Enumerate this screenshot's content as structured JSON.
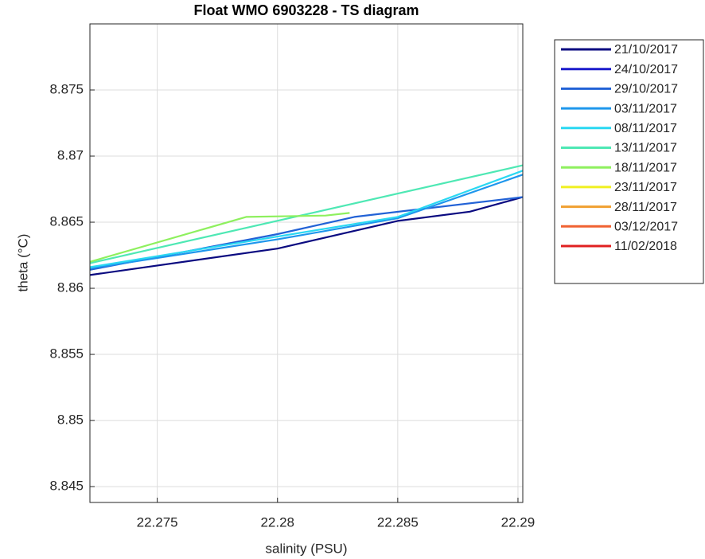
{
  "chart_data": {
    "type": "line",
    "title": "Float WMO 6903228 - TS diagram",
    "xlabel": "salinity (PSU)",
    "ylabel": "theta (°C)",
    "xlim": [
      22.2722,
      22.2902
    ],
    "ylim": [
      8.8438,
      8.88
    ],
    "xticks": [
      22.275,
      22.28,
      22.285,
      22.29
    ],
    "yticks": [
      8.845,
      8.85,
      8.855,
      8.86,
      8.865,
      8.87,
      8.875
    ],
    "grid": true,
    "legend": "outside-upper-right",
    "series": [
      {
        "name": "21/10/2017",
        "color": "#0a0a80",
        "x": [
          22.2722,
          22.28,
          22.285,
          22.288,
          22.2902
        ],
        "values": [
          8.861,
          8.863,
          8.8651,
          8.8658,
          8.8669
        ]
      },
      {
        "name": "24/10/2017",
        "color": "#1c1ccc",
        "x": [],
        "values": []
      },
      {
        "name": "29/10/2017",
        "color": "#2262d6",
        "x": [
          22.2722,
          22.28,
          22.2832,
          22.2902
        ],
        "values": [
          8.8614,
          8.8641,
          8.8654,
          8.8669
        ]
      },
      {
        "name": "03/11/2017",
        "color": "#1e96ec",
        "x": [
          22.2722,
          22.28,
          22.285,
          22.2902
        ],
        "values": [
          8.8615,
          8.8637,
          8.8653,
          8.8686
        ]
      },
      {
        "name": "08/11/2017",
        "color": "#2ad8f2",
        "x": [
          22.2722,
          22.285,
          22.2902
        ],
        "values": [
          8.8616,
          8.8654,
          8.8689
        ]
      },
      {
        "name": "13/11/2017",
        "color": "#4ee8b4",
        "x": [
          22.2722,
          22.2902
        ],
        "values": [
          8.8619,
          8.8693
        ]
      },
      {
        "name": "18/11/2017",
        "color": "#8ef05e",
        "x": [
          22.2722,
          22.2787,
          22.282,
          22.283
        ],
        "values": [
          8.862,
          8.8654,
          8.8655,
          8.8657
        ]
      },
      {
        "name": "23/11/2017",
        "color": "#f0f020",
        "x": [],
        "values": []
      },
      {
        "name": "28/11/2017",
        "color": "#f0a030",
        "x": [],
        "values": []
      },
      {
        "name": "03/12/2017",
        "color": "#f06232",
        "x": [],
        "values": []
      },
      {
        "name": "11/02/2018",
        "color": "#e02020",
        "x": [],
        "values": []
      }
    ]
  }
}
